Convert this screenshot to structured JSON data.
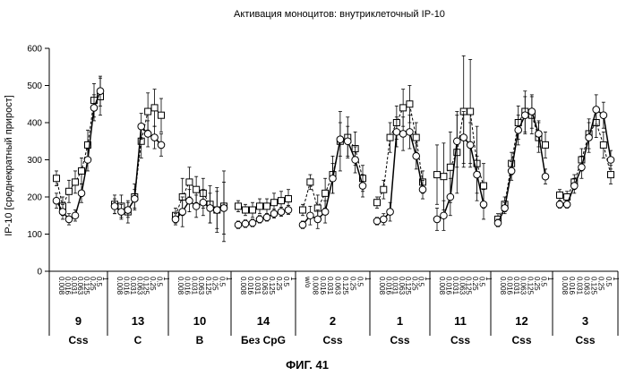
{
  "chart_data": {
    "type": "line",
    "title": "Активация моноцитов: внутриклеточный IP-10",
    "ylabel": "IP-10 [среднекратный прирост]",
    "xlabel": "",
    "ylim": [
      0,
      600
    ],
    "yticks": [
      0,
      100,
      200,
      300,
      400,
      500,
      600
    ],
    "grid": false,
    "figure_label": "ФИГ. 41",
    "groups": [
      {
        "number": "9",
        "sublabel": "Css",
        "concentrations": [
          "0.008",
          "0.016",
          "0.031",
          "0.063",
          "0.125",
          "0.25",
          "0.5",
          "1"
        ],
        "series": [
          {
            "marker": "square",
            "values": [
              250,
              175,
              215,
              240,
              270,
              340,
              460,
              470
            ],
            "errors": [
              20,
              25,
              30,
              30,
              35,
              40,
              45,
              50
            ]
          },
          {
            "marker": "circle",
            "values": [
              190,
              160,
              140,
              150,
              210,
              300,
              440,
              485
            ],
            "errors": [
              20,
              20,
              15,
              15,
              25,
              30,
              35,
              40
            ]
          }
        ]
      },
      {
        "number": "13",
        "sublabel": "C",
        "concentrations": [
          "0.008",
          "0.016",
          "0.031",
          "0.063",
          "0.125",
          "0.25",
          "0.5",
          "1"
        ],
        "series": [
          {
            "marker": "square",
            "values": [
              180,
              175,
              160,
              200,
              350,
              430,
              440,
              420
            ],
            "errors": [
              25,
              30,
              30,
              35,
              45,
              50,
              50,
              45
            ]
          },
          {
            "marker": "circle",
            "values": [
              175,
              160,
              165,
              195,
              390,
              370,
              360,
              340
            ],
            "errors": [
              20,
              20,
              20,
              25,
              35,
              35,
              30,
              30
            ]
          }
        ]
      },
      {
        "number": "10",
        "sublabel": "B",
        "concentrations": [
          "0.008",
          "0.016",
          "0.031",
          "0.063",
          "0.125",
          "0.25",
          "0.5",
          "1"
        ],
        "series": [
          {
            "marker": "square",
            "values": [
              150,
              200,
              240,
              220,
              210,
              180,
              165,
              175
            ],
            "errors": [
              20,
              50,
              40,
              35,
              40,
              50,
              60,
              95
            ]
          },
          {
            "marker": "circle",
            "values": [
              140,
              160,
              190,
              175,
              185,
              170,
              165,
              170
            ],
            "errors": [
              15,
              40,
              30,
              30,
              35,
              40,
              50,
              70
            ]
          }
        ]
      },
      {
        "number": "14",
        "sublabel": "Без CpG",
        "concentrations": [
          "0.008",
          "0.016",
          "0.031",
          "0.063",
          "0.125",
          "0.25",
          "0.5",
          "1"
        ],
        "series": [
          {
            "marker": "square",
            "values": [
              175,
              165,
              165,
              175,
              175,
              185,
              190,
              195
            ],
            "errors": [
              15,
              15,
              20,
              20,
              20,
              25,
              25,
              25
            ]
          },
          {
            "marker": "circle",
            "values": [
              125,
              128,
              130,
              140,
              145,
              155,
              160,
              165
            ],
            "errors": [
              10,
              10,
              10,
              10,
              10,
              12,
              12,
              12
            ]
          }
        ]
      },
      {
        "number": "2",
        "sublabel": "Css",
        "concentrations": [
          "w/o",
          "0.008",
          "0.016",
          "0.031",
          "0.063",
          "0.125",
          "0.25",
          "0.5",
          "1"
        ],
        "series": [
          {
            "marker": "square",
            "values": [
              165,
              240,
              170,
              210,
              260,
              350,
              360,
              330,
              250
            ],
            "errors": [
              15,
              20,
              35,
              40,
              50,
              80,
              55,
              45,
              35
            ]
          },
          {
            "marker": "circle",
            "values": [
              125,
              150,
              140,
              160,
              250,
              355,
              350,
              300,
              230
            ],
            "errors": [
              10,
              25,
              25,
              30,
              40,
              45,
              40,
              35,
              30
            ]
          }
        ]
      },
      {
        "number": "1",
        "sublabel": "Css",
        "concentrations": [
          "0.008",
          "0.016",
          "0.031",
          "0.063",
          "0.125",
          "0.25",
          "0.5",
          "1"
        ],
        "series": [
          {
            "marker": "square",
            "values": [
              185,
              220,
              360,
              400,
              440,
              450,
              360,
              240
            ],
            "errors": [
              15,
              25,
              40,
              45,
              50,
              50,
              40,
              30
            ]
          },
          {
            "marker": "circle",
            "values": [
              135,
              140,
              160,
              375,
              370,
              375,
              310,
              220
            ],
            "errors": [
              10,
              15,
              25,
              40,
              45,
              45,
              35,
              25
            ]
          }
        ]
      },
      {
        "number": "11",
        "sublabel": "Css",
        "concentrations": [
          "0.008",
          "0.016",
          "0.031",
          "0.063",
          "0.125",
          "0.25",
          "0.5",
          "1"
        ],
        "series": [
          {
            "marker": "square",
            "values": [
              260,
              255,
              280,
              320,
              430,
              430,
              290,
              230
            ],
            "errors": [
              80,
              90,
              95,
              110,
              150,
              140,
              100,
              60
            ]
          },
          {
            "marker": "circle",
            "values": [
              140,
              150,
              200,
              350,
              360,
              340,
              260,
              180
            ],
            "errors": [
              30,
              40,
              50,
              70,
              70,
              60,
              50,
              40
            ]
          }
        ]
      },
      {
        "number": "12",
        "sublabel": "Css",
        "concentrations": [
          "0.008",
          "0.016",
          "0.031",
          "0.063",
          "0.125",
          "0.25",
          "0.5",
          "1"
        ],
        "series": [
          {
            "marker": "square",
            "values": [
              140,
              180,
              290,
              400,
              430,
              420,
              360,
              340
            ],
            "errors": [
              15,
              20,
              30,
              45,
              55,
              50,
              40,
              35
            ]
          },
          {
            "marker": "circle",
            "values": [
              130,
              170,
              270,
              380,
              420,
              430,
              370,
              255
            ],
            "errors": [
              10,
              15,
              25,
              40,
              50,
              45,
              35,
              20
            ]
          }
        ]
      },
      {
        "number": "3",
        "sublabel": "Css",
        "concentrations": [
          "0.008",
          "0.016",
          "0.031",
          "0.063",
          "0.125",
          "0.25",
          "0.5",
          "1"
        ],
        "series": [
          {
            "marker": "square",
            "values": [
              205,
              200,
              240,
              300,
              370,
              400,
              340,
              260,
              205
            ],
            "errors": [
              15,
              15,
              20,
              30,
              40,
              40,
              35,
              25,
              15
            ]
          },
          {
            "marker": "circle",
            "values": [
              180,
              180,
              230,
              280,
              360,
              435,
              420,
              300,
              210
            ],
            "errors": [
              10,
              10,
              20,
              30,
              40,
              40,
              35,
              25,
              15
            ]
          }
        ]
      }
    ]
  }
}
